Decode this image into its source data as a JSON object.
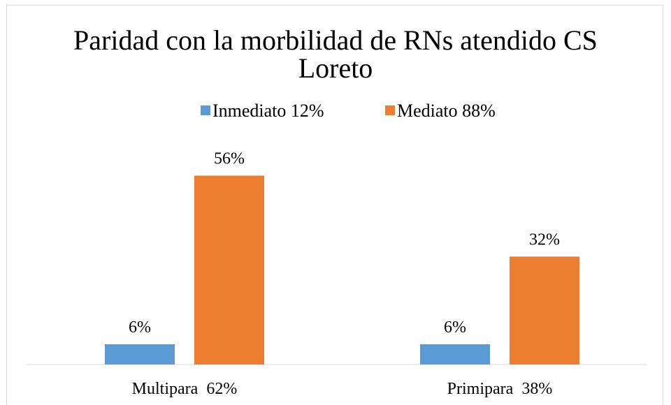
{
  "chart_data": {
    "type": "bar",
    "title": "Paridad con la morbilidad de RNs atendido CS Loreto",
    "categories": [
      "Multipara  62%",
      "Primipara  38%"
    ],
    "series": [
      {
        "name": "Inmediato 12%",
        "color": "#5b9bd5",
        "values": [
          6,
          6
        ],
        "value_labels": [
          "6%",
          "6%"
        ]
      },
      {
        "name": "Mediato 88%",
        "color": "#ed7d31",
        "values": [
          56,
          32
        ],
        "value_labels": [
          "56%",
          "32%"
        ]
      }
    ],
    "legend": "top"
  }
}
